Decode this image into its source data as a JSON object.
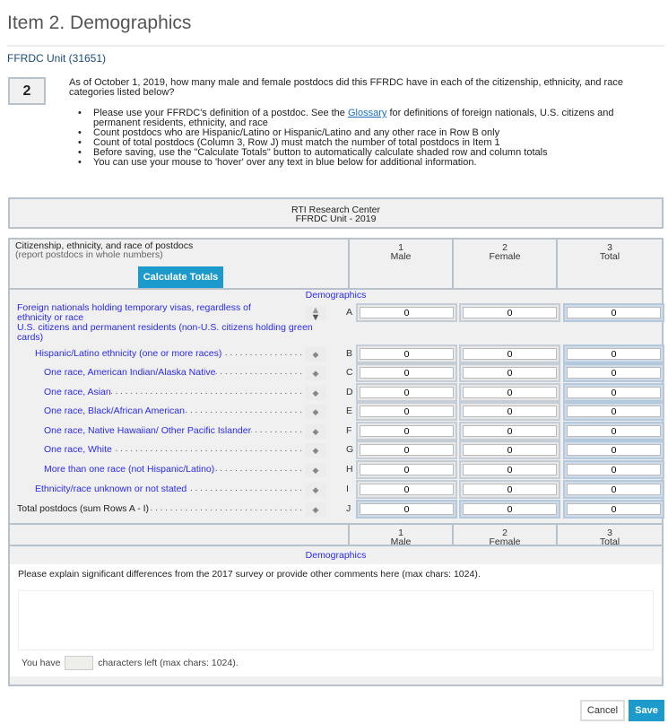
{
  "title": "Item 2. Demographics",
  "unit": "FFRDC Unit (31651)",
  "question": {
    "number": "2",
    "text": "As of October 1, 2019, how many male and female postdocs did this FFRDC have in each of the citizenship, ethnicity, and race categories listed below?"
  },
  "bullets": {
    "b0_pre": "Please use your FFRDC's definition of a postdoc. See the ",
    "b0_link": "Glossary",
    "b0_post": " for definitions of foreign nationals, U.S. citizens and permanent residents, ethnicity, and race",
    "b1": "Count postdocs who are Hispanic/Latino or Hispanic/Latino and any other race in Row B only",
    "b2": "Count of total postdocs (Column 3, Row J) must match the number of total postdocs in Item 1",
    "b3": "Before saving, use the \"Calculate Totals\" button to automatically calculate shaded row and column totals",
    "b4": "You can use your mouse to 'hover' over any text in blue below for additional information."
  },
  "org": {
    "name": "RTI Research Center",
    "unit": "FFRDC Unit - 2019"
  },
  "table": {
    "header_label": "Citizenship, ethnicity, and race of postdocs",
    "header_sub": "(report postdocs in whole numbers)",
    "calc_button": "Calculate Totals",
    "section": "Demographics",
    "columns": [
      {
        "num": "1",
        "label": "Male"
      },
      {
        "num": "2",
        "label": "Female"
      },
      {
        "num": "3",
        "label": "Total"
      }
    ],
    "subheading": "U.S. citizens and permanent residents (non-U.S. citizens holding green cards)",
    "rowA": {
      "label": "Foreign nationals holding temporary visas, regardless of ethnicity or race",
      "letter": "A",
      "values": [
        "0",
        "0",
        "0"
      ]
    },
    "rows": [
      {
        "label": "Hispanic/Latino ethnicity (one or more races)",
        "letter": "B",
        "values": [
          "0",
          "0",
          "0"
        ]
      },
      {
        "label": "One race, American Indian/Alaska Native",
        "letter": "C",
        "values": [
          "0",
          "0",
          "0"
        ]
      },
      {
        "label": "One race, Asian",
        "letter": "D",
        "values": [
          "0",
          "0",
          "0"
        ]
      },
      {
        "label": "One race, Black/African American",
        "letter": "E",
        "values": [
          "0",
          "0",
          "0"
        ]
      },
      {
        "label": "One race, Native Hawaiian/ Other Pacific Islander",
        "letter": "F",
        "values": [
          "0",
          "0",
          "0"
        ]
      },
      {
        "label": "One race, White",
        "letter": "G",
        "values": [
          "0",
          "0",
          "0"
        ]
      },
      {
        "label": "More than one race (not Hispanic/Latino)",
        "letter": "H",
        "values": [
          "0",
          "0",
          "0"
        ]
      },
      {
        "label": "Ethnicity/race unknown or not stated",
        "letter": "I",
        "values": [
          "0",
          "0",
          "0"
        ]
      },
      {
        "label": "Total postdocs (sum Rows A - I)",
        "letter": "J",
        "values": [
          "0",
          "0",
          "0"
        ]
      }
    ]
  },
  "comments": {
    "prompt": "Please explain significant differences from the 2017 survey or provide other comments here (max chars: 1024).",
    "value": "",
    "left_pre": "You have",
    "left_count": "",
    "left_post": "characters left (max chars: 1024)."
  },
  "buttons": {
    "cancel": "Cancel",
    "save": "Save"
  },
  "colors": {
    "accent": "#1b9acb",
    "link_blue": "#2a2af0"
  }
}
